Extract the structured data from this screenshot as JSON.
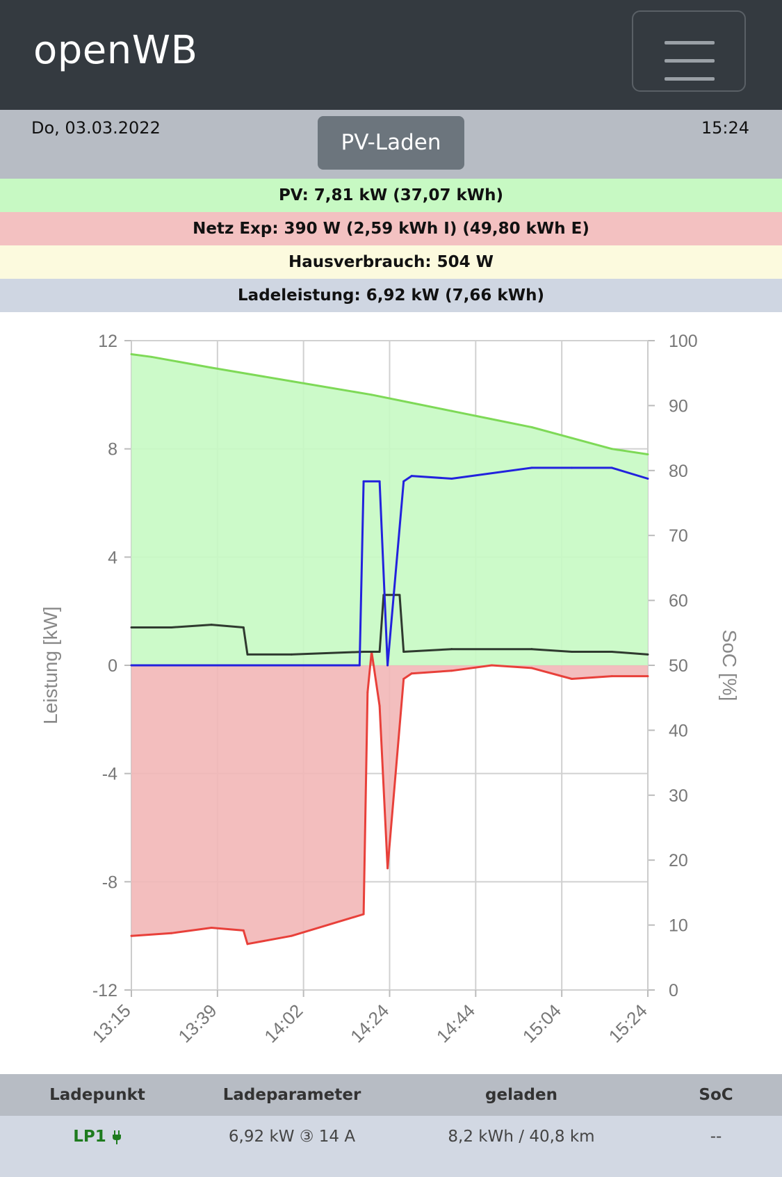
{
  "app": {
    "title": "openWB",
    "menu_icon": "hamburger-icon"
  },
  "status": {
    "date": "Do, 03.03.2022",
    "time": "15:24",
    "mode_button": "PV-Laden"
  },
  "info": {
    "pv": "PV: 7,81 kW (37,07 kWh)",
    "grid": "Netz Exp: 390 W (2,59 kWh I) (49,80 kWh E)",
    "house": "Hausverbrauch: 504 W",
    "charge": "Ladeleistung: 6,92 kW (7,66 kWh)"
  },
  "colors": {
    "pv": "#7ed957",
    "pv_fill": "#c7f9c3",
    "grid": "#e8403a",
    "grid_fill": "#f2b7b7",
    "house": "#2f3a2f",
    "charge": "#2222dd"
  },
  "chart_data": {
    "type": "line",
    "title": "",
    "xlabel": "",
    "ylabel": "Leistung [kW]",
    "y2label": "SoC [%]",
    "ylim": [
      -12,
      12
    ],
    "y2lim": [
      0,
      100
    ],
    "y_ticks": [
      "12",
      "8",
      "4",
      "0",
      "-4",
      "-8",
      "-12"
    ],
    "y2_ticks": [
      "100",
      "90",
      "80",
      "70",
      "60",
      "50",
      "40",
      "30",
      "20",
      "10",
      "0"
    ],
    "x_ticks": [
      "13:15",
      "13:39",
      "14:02",
      "14:24",
      "14:44",
      "15:04",
      "15:24"
    ],
    "series": [
      {
        "name": "PV",
        "t": [
          0,
          5,
          20,
          40,
          60,
          70,
          80,
          90,
          100,
          110,
          120,
          129
        ],
        "values": [
          11.5,
          11.4,
          11.0,
          10.5,
          10.0,
          9.7,
          9.4,
          9.1,
          8.8,
          8.4,
          8.0,
          7.8
        ]
      },
      {
        "name": "Netz",
        "t": [
          0,
          10,
          20,
          28,
          29,
          40,
          58,
          59,
          60,
          62,
          64,
          68,
          70,
          80,
          90,
          100,
          110,
          120,
          129
        ],
        "values": [
          -10.0,
          -9.9,
          -9.7,
          -9.8,
          -10.3,
          -10.0,
          -9.2,
          -1.0,
          0.5,
          -1.5,
          -7.5,
          -0.5,
          -0.3,
          -0.2,
          0.0,
          -0.1,
          -0.5,
          -0.4,
          -0.4
        ]
      },
      {
        "name": "Hausverbrauch",
        "t": [
          0,
          10,
          20,
          28,
          29,
          40,
          58,
          62,
          63,
          67,
          68,
          80,
          100,
          110,
          120,
          129
        ],
        "values": [
          1.4,
          1.4,
          1.5,
          1.4,
          0.4,
          0.4,
          0.5,
          0.5,
          2.6,
          2.6,
          0.5,
          0.6,
          0.6,
          0.5,
          0.5,
          0.4
        ]
      },
      {
        "name": "Ladeleistung",
        "t": [
          0,
          57,
          58,
          62,
          64,
          68,
          70,
          80,
          100,
          110,
          120,
          129
        ],
        "values": [
          0,
          0,
          6.8,
          6.8,
          0,
          6.8,
          7.0,
          6.9,
          7.3,
          7.3,
          7.3,
          6.9
        ]
      }
    ]
  },
  "table": {
    "headers": [
      "Ladepunkt",
      "Ladeparameter",
      "geladen",
      "SoC"
    ],
    "row": {
      "lp": "LP1",
      "lp_icon": "plug-icon",
      "params": "6,92 kW ③ 14 A",
      "charged": "8,2 kWh / 40,8 km",
      "soc": "--"
    }
  }
}
